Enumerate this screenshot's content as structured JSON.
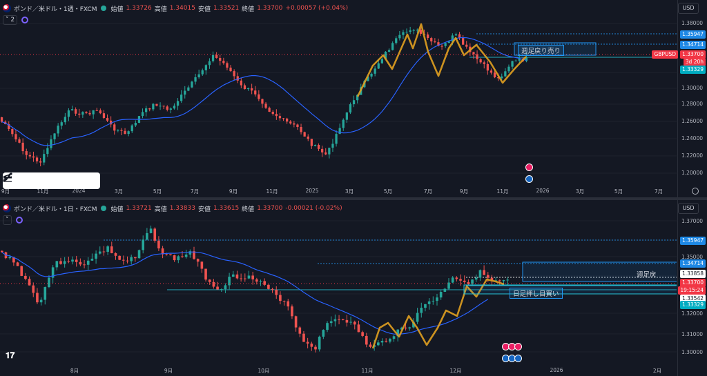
{
  "top": {
    "symbol": "ポンド／米ドル・1週・FXCM",
    "ohlc": [
      {
        "label": "始値",
        "value": "1.33726"
      },
      {
        "label": "高値",
        "value": "1.34015"
      },
      {
        "label": "安値",
        "value": "1.33521"
      },
      {
        "label": "終値",
        "value": "1.33700"
      }
    ],
    "change": "+0.00057 (+0.04%)",
    "sub_count": "2",
    "currency": "USD",
    "y_ticks": [
      "1.38000",
      "1.34000",
      "1.32000",
      "1.30000",
      "1.28000",
      "1.26000",
      "1.24000",
      "1.22000",
      "1.20000"
    ],
    "price_tags": [
      {
        "text": "1.35947",
        "color": "#2196f3"
      },
      {
        "text": "1.34714",
        "color": "#2196f3"
      },
      {
        "text": "GBPUSD",
        "color": "#f23645"
      },
      {
        "text": "1.33700",
        "color": "#f23645"
      },
      {
        "text": "3d 20h",
        "color": "#f23645"
      },
      {
        "text": "1.33329",
        "color": "#26c6da"
      }
    ],
    "x_ticks": [
      "9月",
      "11月",
      "2024",
      "3月",
      "5月",
      "7月",
      "9月",
      "11月",
      "2025",
      "3月",
      "5月",
      "7月",
      "9月",
      "11月",
      "2026",
      "3月",
      "5月",
      "7月"
    ],
    "annotation": "週足戻り売り"
  },
  "bottom": {
    "symbol": "ポンド／米ドル・1日・FXCM",
    "ohlc": [
      {
        "label": "始値",
        "value": "1.33721"
      },
      {
        "label": "高値",
        "value": "1.33833"
      },
      {
        "label": "安値",
        "value": "1.33615"
      },
      {
        "label": "終値",
        "value": "1.33700"
      }
    ],
    "change": "-0.00021 (-0.02%)",
    "currency": "USD",
    "y_ticks": [
      "1.37000",
      "1.36000",
      "1.35000",
      "1.34000",
      "1.33000",
      "1.32000",
      "1.31000",
      "1.30000"
    ],
    "price_tags": [
      {
        "text": "1.35947",
        "color": "#2196f3"
      },
      {
        "text": "1.34714",
        "color": "#2196f3"
      },
      {
        "text": "1.33858",
        "color": "#ffffff"
      },
      {
        "text": "1.33700",
        "color": "#f23645"
      },
      {
        "text": "19:15:24",
        "color": "#f23645"
      },
      {
        "text": "1.33542",
        "color": "#ffffff"
      },
      {
        "text": "1.33329",
        "color": "#26c6da"
      }
    ],
    "x_ticks": [
      "8月",
      "9月",
      "10月",
      "11月",
      "12月",
      "2026",
      "2月"
    ],
    "annotation_top": "週足戻",
    "annotation_main": "日足押し目買い"
  },
  "colors": {
    "up": "#26a69a",
    "down": "#ef5350",
    "ma": "#2962ff",
    "zigzag": "#e0a020",
    "bg": "#141823"
  }
}
